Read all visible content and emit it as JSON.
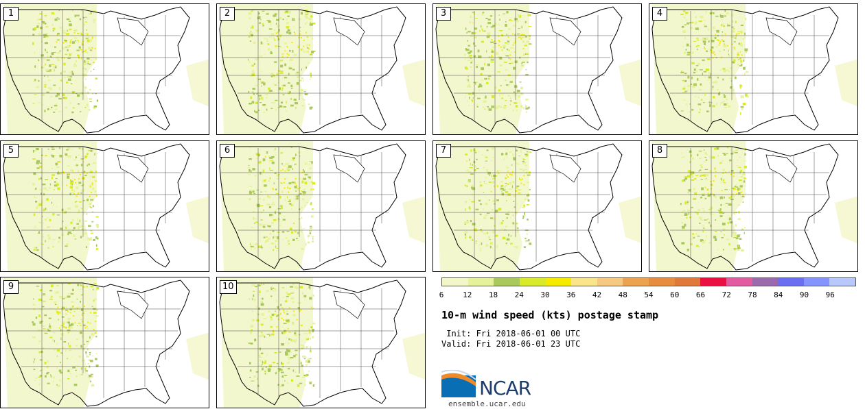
{
  "panels": [
    {
      "label": "1"
    },
    {
      "label": "2"
    },
    {
      "label": "3"
    },
    {
      "label": "4"
    },
    {
      "label": "5"
    },
    {
      "label": "6"
    },
    {
      "label": "7"
    },
    {
      "label": "8"
    },
    {
      "label": "9"
    },
    {
      "label": "10"
    }
  ],
  "colorbar": {
    "colors": [
      "#f2f6c8",
      "#e6f29a",
      "#a9c95d",
      "#d9ea2a",
      "#f6ea00",
      "#fbe58a",
      "#f6c982",
      "#eca24e",
      "#e68c3c",
      "#e0783a",
      "#ea1040",
      "#e25aa0",
      "#9b6aac",
      "#6a6ef0",
      "#8494ff",
      "#b8c8fc"
    ],
    "labels": [
      "6",
      "12",
      "18",
      "24",
      "30",
      "36",
      "42",
      "48",
      "54",
      "60",
      "66",
      "72",
      "78",
      "84",
      "90",
      "96"
    ]
  },
  "title": "10-m wind speed (kts) postage stamp",
  "init_line": " Init: Fri 2018-06-01 00 UTC",
  "valid_line": "Valid: Fri 2018-06-01 23 UTC",
  "logo": {
    "text": "NCAR"
  },
  "url": "ensemble.ucar.edu"
}
